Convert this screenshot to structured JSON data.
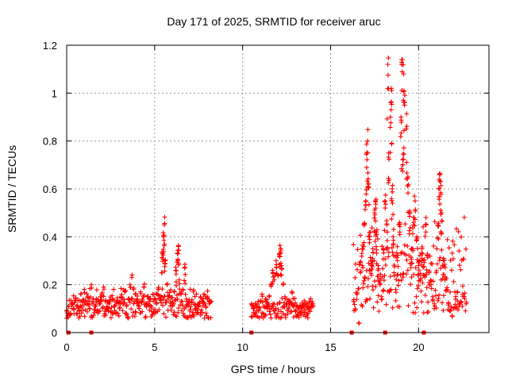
{
  "chart_data": {
    "type": "scatter",
    "title": "Day 171 of 2025, SRMTID for receiver aruc",
    "xlabel": "GPS time / hours",
    "ylabel": "SRMTID / TECUs",
    "xlim": [
      0,
      24
    ],
    "ylim": [
      0,
      1.2
    ],
    "xticks": [
      0,
      5,
      10,
      15,
      20
    ],
    "xtick_labels": [
      "0",
      "5",
      "10",
      "15",
      "20"
    ],
    "yticks": [
      0,
      0.2,
      0.4,
      0.6,
      0.8,
      1.0,
      1.2
    ],
    "ytick_labels": [
      "0",
      "0.2",
      "0.4",
      "0.6",
      "0.8",
      "1",
      "1.2"
    ],
    "grid": true,
    "marker": "+",
    "color": "#ff0000",
    "series": [
      {
        "name": "SRMTID",
        "points": [
          [
            0.0,
            0.09
          ],
          [
            0.1,
            0.11
          ],
          [
            0.2,
            0.08
          ],
          [
            0.3,
            0.12
          ],
          [
            0.4,
            0.1
          ],
          [
            0.5,
            0.14
          ],
          [
            0.6,
            0.11
          ],
          [
            0.7,
            0.09
          ],
          [
            0.8,
            0.16
          ],
          [
            0.9,
            0.13
          ],
          [
            1.0,
            0.18
          ],
          [
            1.1,
            0.12
          ],
          [
            1.2,
            0.15
          ],
          [
            1.3,
            0.1
          ],
          [
            1.4,
            0.2
          ],
          [
            1.5,
            0.14
          ],
          [
            1.6,
            0.11
          ],
          [
            1.7,
            0.13
          ],
          [
            1.8,
            0.09
          ],
          [
            1.9,
            0.12
          ],
          [
            2.0,
            0.16
          ],
          [
            2.1,
            0.19
          ],
          [
            2.2,
            0.13
          ],
          [
            2.3,
            0.1
          ],
          [
            2.4,
            0.12
          ],
          [
            2.5,
            0.09
          ],
          [
            2.6,
            0.14
          ],
          [
            2.7,
            0.11
          ],
          [
            2.8,
            0.08
          ],
          [
            2.9,
            0.13
          ],
          [
            3.0,
            0.1
          ],
          [
            3.1,
            0.15
          ],
          [
            3.2,
            0.12
          ],
          [
            3.3,
            0.17
          ],
          [
            3.4,
            0.11
          ],
          [
            3.5,
            0.14
          ],
          [
            3.6,
            0.2
          ],
          [
            3.7,
            0.23
          ],
          [
            3.8,
            0.18
          ],
          [
            3.9,
            0.16
          ],
          [
            4.0,
            0.13
          ],
          [
            4.1,
            0.11
          ],
          [
            4.2,
            0.17
          ],
          [
            4.3,
            0.14
          ],
          [
            4.4,
            0.19
          ],
          [
            4.5,
            0.12
          ],
          [
            4.6,
            0.15
          ],
          [
            4.7,
            0.13
          ],
          [
            4.8,
            0.11
          ],
          [
            4.9,
            0.16
          ],
          [
            5.0,
            0.14
          ],
          [
            5.1,
            0.12
          ],
          [
            5.2,
            0.18
          ],
          [
            5.3,
            0.15
          ],
          [
            5.4,
            0.25
          ],
          [
            5.45,
            0.33
          ],
          [
            5.5,
            0.4
          ],
          [
            5.55,
            0.45
          ],
          [
            5.6,
            0.3
          ],
          [
            5.7,
            0.2
          ],
          [
            5.8,
            0.15
          ],
          [
            5.9,
            0.13
          ],
          [
            6.0,
            0.11
          ],
          [
            6.1,
            0.17
          ],
          [
            6.2,
            0.26
          ],
          [
            6.3,
            0.33
          ],
          [
            6.35,
            0.36
          ],
          [
            6.4,
            0.22
          ],
          [
            6.5,
            0.16
          ],
          [
            6.6,
            0.18
          ],
          [
            6.7,
            0.27
          ],
          [
            6.8,
            0.14
          ],
          [
            6.9,
            0.12
          ],
          [
            7.0,
            0.09
          ],
          [
            7.1,
            0.13
          ],
          [
            7.2,
            0.17
          ],
          [
            7.3,
            0.1
          ],
          [
            7.4,
            0.08
          ],
          [
            7.5,
            0.12
          ],
          [
            7.6,
            0.15
          ],
          [
            7.7,
            0.13
          ],
          [
            7.8,
            0.16
          ],
          [
            7.9,
            0.11
          ],
          [
            8.0,
            0.14
          ],
          [
            8.1,
            0.12
          ],
          [
            8.2,
            0.13
          ],
          [
            10.5,
            0.12
          ],
          [
            10.6,
            0.1
          ],
          [
            10.7,
            0.08
          ],
          [
            10.8,
            0.11
          ],
          [
            10.9,
            0.09
          ],
          [
            11.0,
            0.13
          ],
          [
            11.1,
            0.16
          ],
          [
            11.2,
            0.11
          ],
          [
            11.3,
            0.14
          ],
          [
            11.4,
            0.1
          ],
          [
            11.5,
            0.15
          ],
          [
            11.6,
            0.2
          ],
          [
            11.7,
            0.26
          ],
          [
            11.8,
            0.22
          ],
          [
            11.9,
            0.3
          ],
          [
            12.0,
            0.24
          ],
          [
            12.1,
            0.33
          ],
          [
            12.15,
            0.35
          ],
          [
            12.2,
            0.28
          ],
          [
            12.3,
            0.2
          ],
          [
            12.4,
            0.15
          ],
          [
            12.5,
            0.12
          ],
          [
            12.6,
            0.1
          ],
          [
            12.7,
            0.13
          ],
          [
            12.8,
            0.17
          ],
          [
            12.9,
            0.11
          ],
          [
            13.0,
            0.09
          ],
          [
            13.1,
            0.07
          ],
          [
            13.2,
            0.1
          ],
          [
            13.3,
            0.08
          ],
          [
            13.4,
            0.11
          ],
          [
            13.5,
            0.09
          ],
          [
            13.6,
            0.12
          ],
          [
            13.7,
            0.08
          ],
          [
            13.8,
            0.1
          ],
          [
            13.9,
            0.11
          ],
          [
            14.0,
            0.12
          ],
          [
            16.3,
            0.13
          ],
          [
            16.4,
            0.1
          ],
          [
            16.5,
            0.16
          ],
          [
            16.6,
            0.04
          ],
          [
            16.7,
            0.25
          ],
          [
            16.8,
            0.35
          ],
          [
            16.9,
            0.45
          ],
          [
            17.0,
            0.55
          ],
          [
            17.05,
            0.75
          ],
          [
            17.1,
            0.8
          ],
          [
            17.15,
            0.62
          ],
          [
            17.2,
            0.4
          ],
          [
            17.3,
            0.3
          ],
          [
            17.4,
            0.35
          ],
          [
            17.5,
            0.5
          ],
          [
            17.55,
            0.55
          ],
          [
            17.6,
            0.42
          ],
          [
            17.7,
            0.28
          ],
          [
            17.8,
            0.2
          ],
          [
            17.9,
            0.15
          ],
          [
            18.0,
            0.35
          ],
          [
            18.1,
            0.55
          ],
          [
            18.2,
            0.45
          ],
          [
            18.25,
            1.12
          ],
          [
            18.3,
            0.75
          ],
          [
            18.4,
            0.9
          ],
          [
            18.45,
            1.02
          ],
          [
            18.5,
            0.6
          ],
          [
            18.55,
            0.4
          ],
          [
            18.6,
            0.25
          ],
          [
            18.7,
            0.18
          ],
          [
            18.8,
            0.3
          ],
          [
            18.9,
            0.45
          ],
          [
            19.0,
            0.9
          ],
          [
            19.05,
            1.14
          ],
          [
            19.1,
            0.7
          ],
          [
            19.15,
            1.08
          ],
          [
            19.2,
            0.95
          ],
          [
            19.3,
            0.85
          ],
          [
            19.4,
            0.65
          ],
          [
            19.5,
            0.5
          ],
          [
            19.6,
            0.35
          ],
          [
            19.7,
            0.45
          ],
          [
            19.8,
            0.55
          ],
          [
            19.9,
            0.4
          ],
          [
            20.0,
            0.28
          ],
          [
            20.1,
            0.22
          ],
          [
            20.2,
            0.35
          ],
          [
            20.3,
            0.3
          ],
          [
            20.4,
            0.45
          ],
          [
            20.5,
            0.32
          ],
          [
            20.6,
            0.25
          ],
          [
            20.7,
            0.2
          ],
          [
            20.8,
            0.15
          ],
          [
            20.9,
            0.12
          ],
          [
            21.0,
            0.25
          ],
          [
            21.1,
            0.45
          ],
          [
            21.15,
            0.6
          ],
          [
            21.2,
            0.66
          ],
          [
            21.25,
            0.63
          ],
          [
            21.3,
            0.5
          ],
          [
            21.4,
            0.3
          ],
          [
            21.5,
            0.22
          ],
          [
            21.6,
            0.18
          ],
          [
            21.7,
            0.12
          ],
          [
            21.8,
            0.09
          ],
          [
            21.9,
            0.07
          ],
          [
            22.0,
            0.1
          ],
          [
            22.1,
            0.14
          ],
          [
            22.2,
            0.17
          ],
          [
            22.3,
            0.11
          ],
          [
            22.4,
            0.13
          ],
          [
            22.5,
            0.16
          ],
          [
            22.6,
            0.15
          ],
          [
            22.7,
            0.12
          ]
        ],
        "dense_segments": [
          {
            "x_start": 0.0,
            "x_end": 8.2,
            "y_min": 0.06,
            "y_max": 0.2
          },
          {
            "x_start": 10.5,
            "x_end": 14.0,
            "y_min": 0.06,
            "y_max": 0.16
          },
          {
            "x_start": 16.3,
            "x_end": 22.7,
            "y_min": 0.08,
            "y_max": 0.5
          }
        ]
      }
    ],
    "zero_markers_x": [
      0.1,
      1.4,
      10.5,
      16.2,
      18.1,
      20.3
    ]
  }
}
